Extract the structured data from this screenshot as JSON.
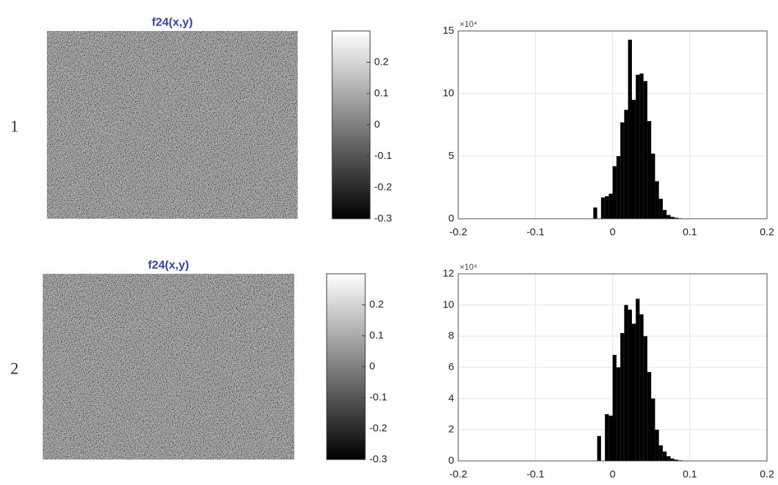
{
  "row_labels": [
    "1",
    "2"
  ],
  "chart_data": [
    {
      "type": "image",
      "title": "f24(x,y)",
      "clim": [
        -0.3,
        0.3
      ],
      "colorbar_ticks": [
        0.2,
        0.1,
        0,
        -0.1,
        -0.2,
        -0.3
      ]
    },
    {
      "type": "histogram",
      "color": "#000000",
      "grid": true,
      "bins": [
        -0.03,
        -0.025,
        -0.02,
        -0.015,
        -0.01,
        -0.005,
        0,
        0.005,
        0.01,
        0.015,
        0.02,
        0.025,
        0.03,
        0.035,
        0.04,
        0.045,
        0.05,
        0.055,
        0.06,
        0.065,
        0.07,
        0.075,
        0.08,
        0.085,
        0.09,
        0.095,
        0.1
      ],
      "counts": [
        0,
        9000,
        0,
        17000,
        18000,
        20000,
        42000,
        50000,
        77000,
        87000,
        143000,
        95000,
        115000,
        116000,
        110000,
        78000,
        52000,
        30000,
        16000,
        7000,
        3000,
        1500,
        800,
        400,
        200,
        100
      ],
      "xlim": [
        -0.2,
        0.2
      ],
      "xticks": [
        -0.2,
        -0.1,
        0,
        0.1,
        0.2
      ],
      "ylim": [
        0,
        150000
      ],
      "yticks": [
        {
          "value": 0,
          "label": "0"
        },
        {
          "value": 50000,
          "label": "5"
        },
        {
          "value": 100000,
          "label": "10"
        },
        {
          "value": 150000,
          "label": "15"
        }
      ],
      "y_multiplier": "×10⁴"
    },
    {
      "type": "image",
      "title": "f24(x,y)",
      "clim": [
        -0.3,
        0.3
      ],
      "colorbar_ticks": [
        0.2,
        0.1,
        0,
        -0.1,
        -0.2,
        -0.3
      ]
    },
    {
      "type": "histogram",
      "color": "#000000",
      "grid": true,
      "bins": [
        -0.02,
        -0.015,
        -0.01,
        -0.005,
        0,
        0.005,
        0.01,
        0.015,
        0.02,
        0.025,
        0.03,
        0.035,
        0.04,
        0.045,
        0.05,
        0.055,
        0.06,
        0.065,
        0.07,
        0.075,
        0.08,
        0.085,
        0.09,
        0.095,
        0.1
      ],
      "counts": [
        16000,
        0,
        30000,
        29000,
        68000,
        60000,
        82000,
        100000,
        97000,
        88000,
        104000,
        94000,
        80000,
        57000,
        40000,
        20000,
        10000,
        6000,
        3000,
        1500,
        800,
        400,
        200,
        100
      ],
      "xlim": [
        -0.2,
        0.2
      ],
      "xticks": [
        -0.2,
        -0.1,
        0,
        0.1,
        0.2
      ],
      "ylim": [
        0,
        120000
      ],
      "yticks": [
        {
          "value": 0,
          "label": "0"
        },
        {
          "value": 20000,
          "label": "2"
        },
        {
          "value": 40000,
          "label": "4"
        },
        {
          "value": 60000,
          "label": "6"
        },
        {
          "value": 80000,
          "label": "8"
        },
        {
          "value": 100000,
          "label": "10"
        },
        {
          "value": 120000,
          "label": "12"
        }
      ],
      "y_multiplier": "×10⁴"
    }
  ]
}
